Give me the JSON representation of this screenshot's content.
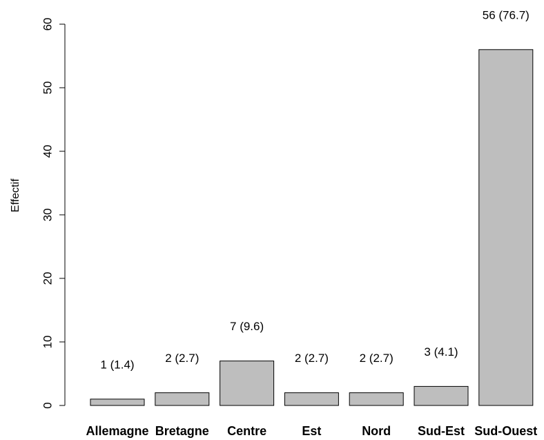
{
  "chart_data": {
    "type": "bar",
    "title": "",
    "xlabel": "",
    "ylabel": "Effectif",
    "ylim": [
      0,
      60
    ],
    "yticks": [
      0,
      10,
      20,
      30,
      40,
      50,
      60
    ],
    "grid": false,
    "legend": null,
    "bar_color": "#bebebe",
    "categories": [
      "Allemagne",
      "Bretagne",
      "Centre",
      "Est",
      "Nord",
      "Sud-Est",
      "Sud-Ouest"
    ],
    "values": [
      1,
      2,
      7,
      2,
      2,
      3,
      56
    ],
    "data_labels": [
      "1 (1.4)",
      "2 (2.7)",
      "7 (9.6)",
      "2 (2.7)",
      "2 (2.7)",
      "3 (4.1)",
      "56 (76.7)"
    ]
  }
}
